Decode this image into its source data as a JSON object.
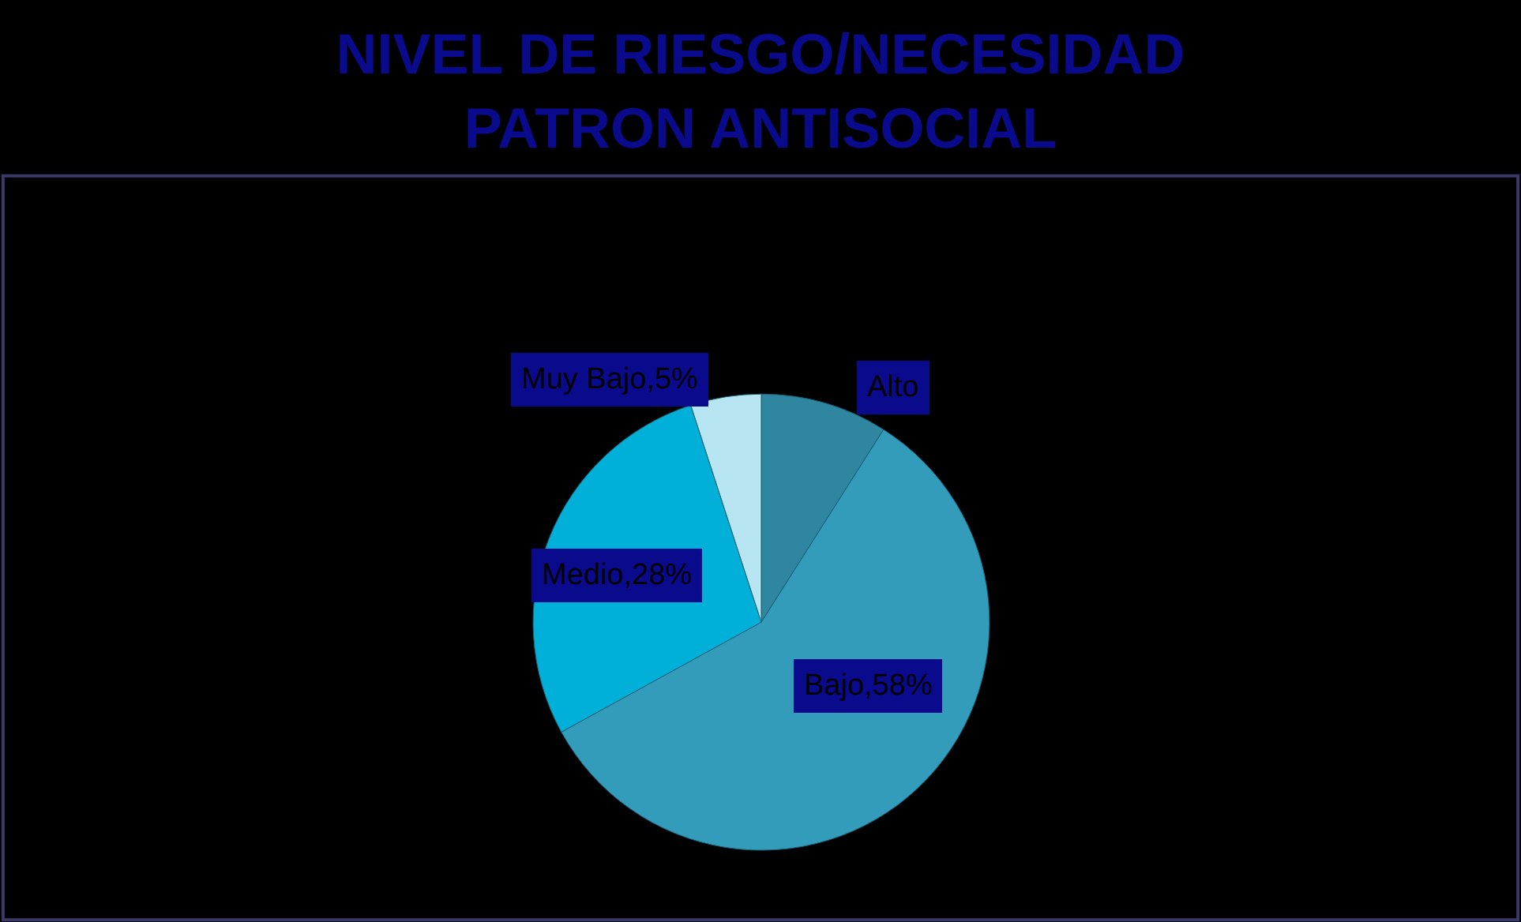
{
  "chart_data": {
    "type": "pie",
    "title": "NIVEL DE RIESGO/NECESIDAD\nPATRON ANTISOCIAL",
    "categories": [
      "Alto",
      "Bajo",
      "Medio",
      "Muy Bajo"
    ],
    "values": [
      9,
      58,
      28,
      5
    ],
    "colors": [
      "#2e86a0",
      "#339cbb",
      "#00b0d8",
      "#b7e6f2"
    ],
    "value_labels": [
      null,
      "58%",
      "28%",
      "5%"
    ],
    "legend": false
  }
}
